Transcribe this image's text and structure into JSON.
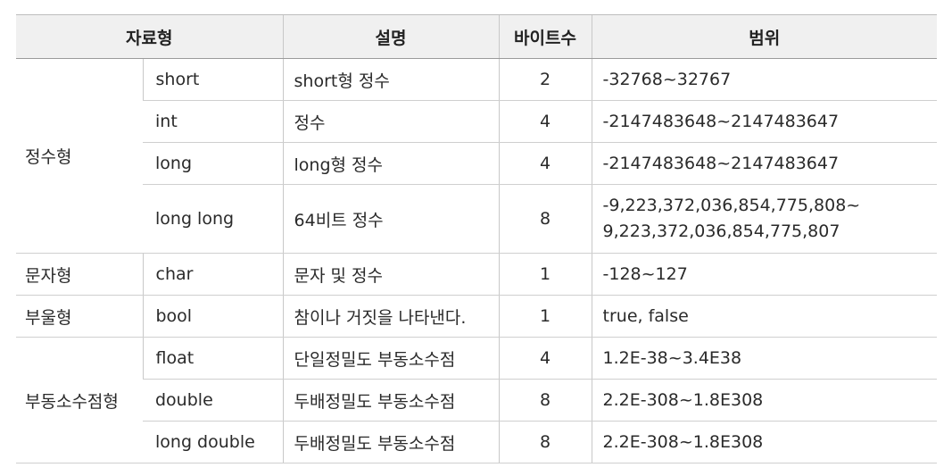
{
  "headers": {
    "type": "자료형",
    "description": "설명",
    "bytes": "바이트수",
    "range": "범위"
  },
  "groups": [
    {
      "category": "정수형",
      "rows": [
        {
          "type": "short",
          "description": "short형 정수",
          "bytes": "2",
          "range": "-32768~32767"
        },
        {
          "type": "int",
          "description": "정수",
          "bytes": "4",
          "range": "-2147483648~2147483647"
        },
        {
          "type": "long",
          "description": "long형 정수",
          "bytes": "4",
          "range": "-2147483648~2147483647"
        },
        {
          "type": "long long",
          "description": "64비트 정수",
          "bytes": "8",
          "range": "-9,223,372,036,854,775,808~",
          "range_line2": "9,223,372,036,854,775,807"
        }
      ]
    },
    {
      "category": "문자형",
      "rows": [
        {
          "type": "char",
          "description": "문자 및 정수",
          "bytes": "1",
          "range": "-128~127"
        }
      ]
    },
    {
      "category": "부울형",
      "rows": [
        {
          "type": "bool",
          "description": "참이나 거짓을 나타낸다.",
          "bytes": "1",
          "range": "true, false"
        }
      ]
    },
    {
      "category": "부동소수점형",
      "rows": [
        {
          "type": "float",
          "description": "단일정밀도 부동소수점",
          "bytes": "4",
          "range": "1.2E-38~3.4E38"
        },
        {
          "type": "double",
          "description": "두배정밀도 부동소수점",
          "bytes": "8",
          "range": "2.2E-308~1.8E308"
        },
        {
          "type": "long double",
          "description": "두배정밀도 부동소수점",
          "bytes": "8",
          "range": "2.2E-308~1.8E308"
        }
      ]
    }
  ]
}
